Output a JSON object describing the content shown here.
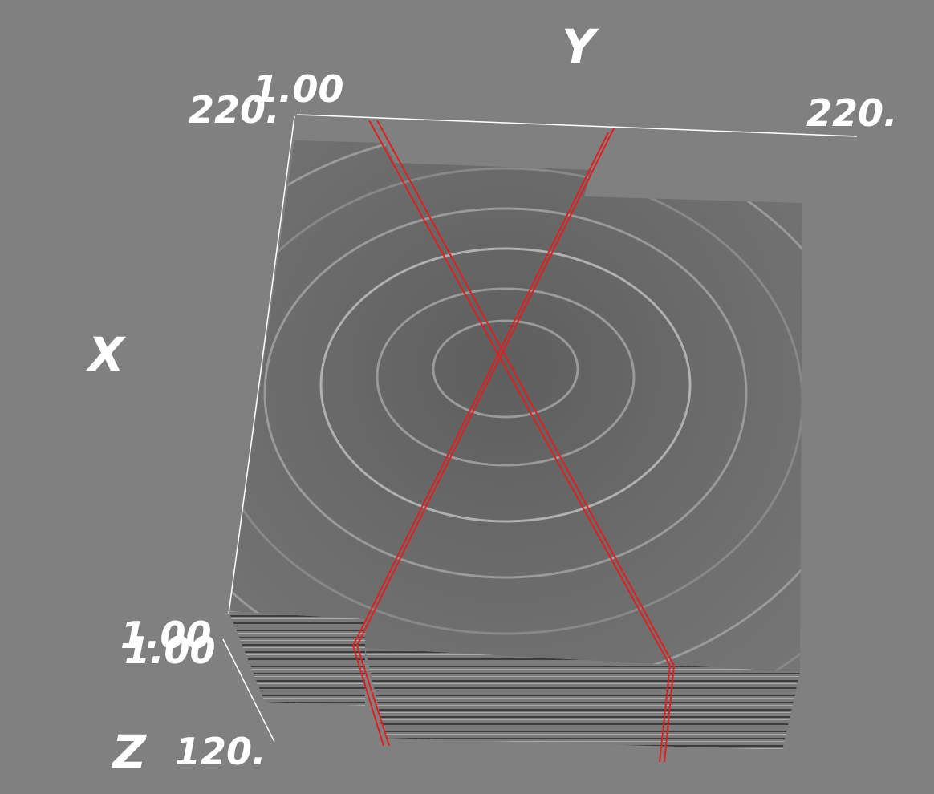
{
  "axes": {
    "y": {
      "label": "Y",
      "start": "1.00",
      "end": "220."
    },
    "x": {
      "label": "X",
      "start": "220.",
      "end": "1.00"
    },
    "z": {
      "label": "Z",
      "start": "1.00",
      "end": "120."
    }
  }
}
